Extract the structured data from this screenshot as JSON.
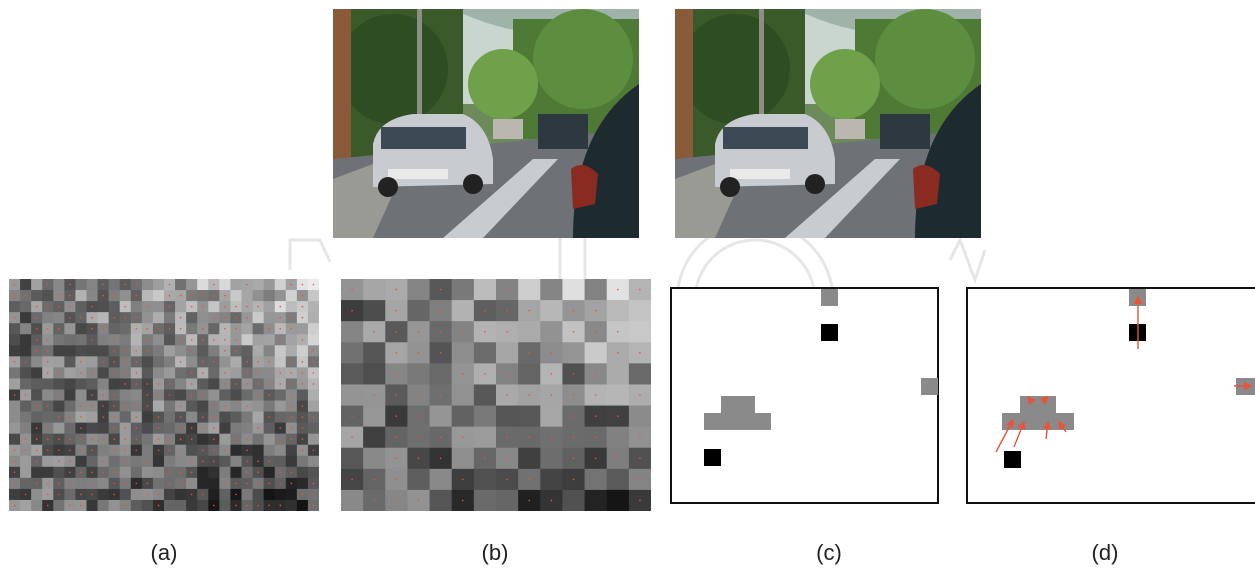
{
  "captions": {
    "a": "(a)",
    "b": "(b)",
    "c": "(c)",
    "d": "(d)"
  },
  "colors": {
    "block_gray": "#8a8a8a",
    "block_black": "#000000",
    "arrow": "#e8533a",
    "frame": "#111111"
  }
}
